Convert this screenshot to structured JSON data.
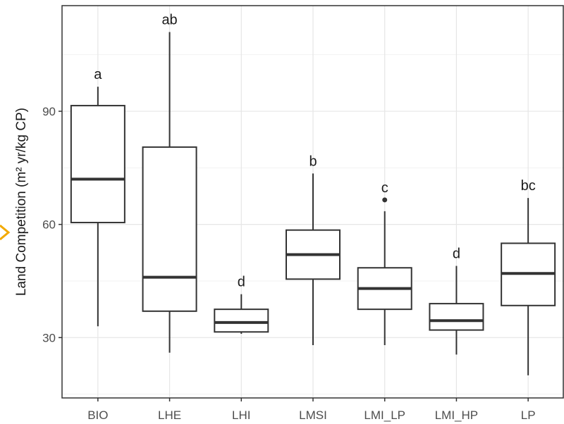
{
  "chart_data": {
    "type": "boxplot",
    "xlabel": "",
    "ylabel": "Land Competition (m² yr/kg CP)",
    "ylim": [
      14,
      118
    ],
    "yticks": [
      30,
      60,
      90
    ],
    "grid": true,
    "categories": [
      "BIO",
      "LHE",
      "LHI",
      "LMSI",
      "LMI_LP",
      "LMI_HP",
      "LP"
    ],
    "boxes": [
      {
        "category": "BIO",
        "min": 33,
        "q1": 60.5,
        "median": 72,
        "q3": 91.5,
        "max": 96.5,
        "outliers": [],
        "group": "a"
      },
      {
        "category": "LHE",
        "min": 26,
        "q1": 37,
        "median": 46,
        "q3": 80.5,
        "max": 111,
        "outliers": [],
        "group": "ab"
      },
      {
        "category": "LHI",
        "min": 31,
        "q1": 31.5,
        "median": 34,
        "q3": 37.5,
        "max": 41.5,
        "outliers": [],
        "group": "d"
      },
      {
        "category": "LMSI",
        "min": 28,
        "q1": 45.5,
        "median": 52,
        "q3": 58.5,
        "max": 73.5,
        "outliers": [],
        "group": "b"
      },
      {
        "category": "LMI_LP",
        "min": 28,
        "q1": 37.5,
        "median": 43,
        "q3": 48.5,
        "max": 63.5,
        "outliers": [
          66.5
        ],
        "group": "c"
      },
      {
        "category": "LMI_HP",
        "min": 25.5,
        "q1": 32,
        "median": 34.5,
        "q3": 39,
        "max": 49,
        "outliers": [],
        "group": "d"
      },
      {
        "category": "LP",
        "min": 20,
        "q1": 38.5,
        "median": 47,
        "q3": 55,
        "max": 67,
        "outliers": [],
        "group": "bc"
      }
    ]
  },
  "colors": {
    "panel_border": "#333333",
    "grid_major": "#e6e6e6",
    "grid_minor": "#f2f2f2",
    "box_stroke": "#333333",
    "accent": "#f2a900"
  }
}
